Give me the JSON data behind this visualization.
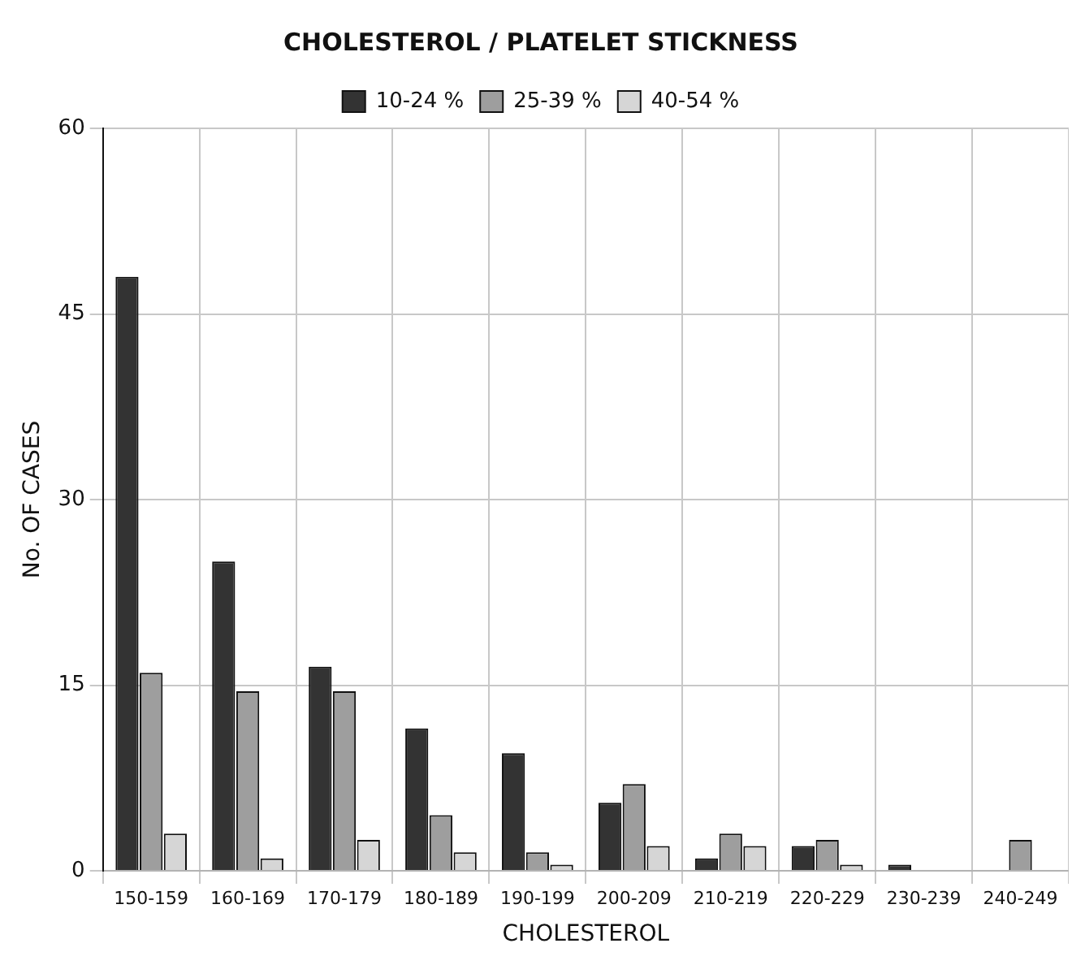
{
  "chart_data": {
    "type": "bar",
    "title": "CHOLESTEROL / PLATELET STICKNESS",
    "xlabel": "CHOLESTEROL",
    "ylabel": "No. OF CASES",
    "categories": [
      "150-159",
      "160-169",
      "170-179",
      "180-189",
      "190-199",
      "200-209",
      "210-219",
      "220-229",
      "230-239",
      "240-249"
    ],
    "series": [
      {
        "name": "10-24 %",
        "color": "#333333",
        "values": [
          48,
          25,
          16.5,
          11.5,
          9.5,
          5.5,
          1,
          2,
          0.5,
          0
        ]
      },
      {
        "name": "25-39 %",
        "color": "#9e9e9e",
        "values": [
          16,
          14.5,
          14.5,
          4.5,
          1.5,
          7,
          3,
          2.5,
          0,
          2.5
        ]
      },
      {
        "name": "40-54 %",
        "color": "#d6d6d6",
        "values": [
          3,
          1,
          2.5,
          1.5,
          0.5,
          2,
          2,
          0.5,
          0,
          0
        ]
      }
    ],
    "ylim": [
      0,
      60
    ],
    "yticks": [
      0,
      15,
      30,
      45,
      60
    ],
    "grid": true,
    "legend": "top"
  }
}
